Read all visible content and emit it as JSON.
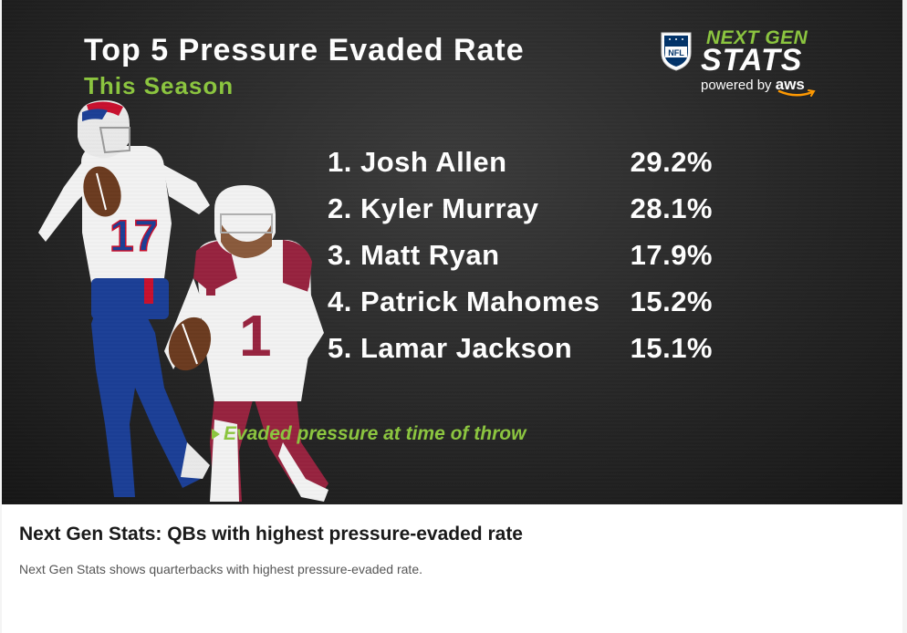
{
  "graphic": {
    "title": "Top 5 Pressure Evaded Rate",
    "subtitle": "This Season",
    "brand": {
      "league_logo": "NFL",
      "line1": "NEXT GEN",
      "line2": "STATS",
      "powered_by": "powered by",
      "sponsor": "aws"
    },
    "rankings": [
      {
        "label": "1. Josh Allen",
        "value": "29.2%"
      },
      {
        "label": "2. Kyler Murray",
        "value": "28.1%"
      },
      {
        "label": "3. Matt Ryan",
        "value": "17.9%"
      },
      {
        "label": "4. Patrick Mahomes",
        "value": "15.2%"
      },
      {
        "label": "5. Lamar Jackson",
        "value": "15.1%"
      }
    ],
    "footnote": "Evaded pressure at time of throw",
    "player_jerseys": [
      "17",
      "1"
    ]
  },
  "caption": {
    "title": "Next Gen Stats: QBs with highest pressure-evaded rate",
    "description": "Next Gen Stats shows quarterbacks with highest pressure-evaded rate."
  },
  "colors": {
    "accent_green": "#8cc63f",
    "background_dark": "#262626",
    "bills_blue": "#1b3f96",
    "bills_red": "#c8102e",
    "cardinals_red": "#97233f"
  }
}
